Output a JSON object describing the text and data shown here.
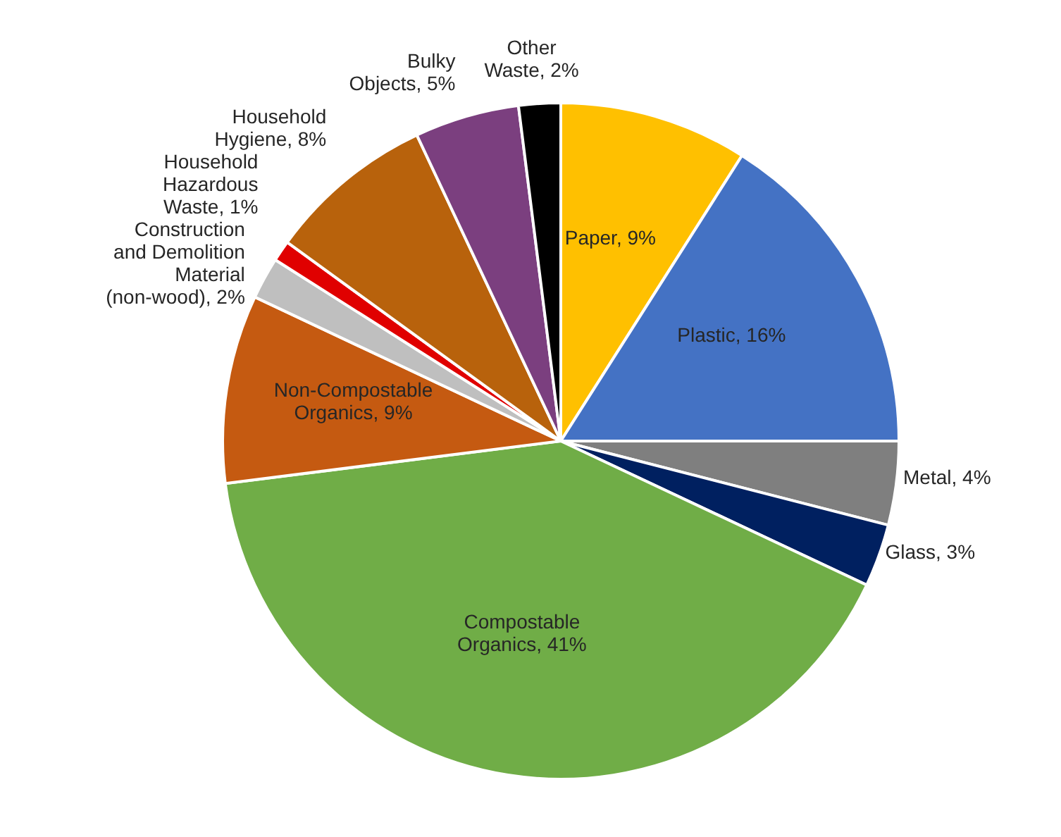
{
  "chart_data": {
    "type": "pie",
    "categories": [
      "Paper",
      "Plastic",
      "Metal",
      "Glass",
      "Compostable Organics",
      "Non-Compostable Organics",
      "Construction and Demolition Material (non-wood)",
      "Household Hazardous Waste",
      "Household Hygiene",
      "Bulky Objects",
      "Other Waste"
    ],
    "values": [
      9,
      16,
      4,
      3,
      41,
      9,
      2,
      1,
      8,
      5,
      2
    ],
    "value_labels": [
      "9%",
      "16%",
      "4%",
      "3%",
      "41%",
      "9%",
      "2%",
      "1%",
      "8%",
      "5%",
      "2%"
    ],
    "colors": [
      "#ffc000",
      "#4472c4",
      "#7f7f7f",
      "#002060",
      "#70ad47",
      "#c55a11",
      "#bfbfbf",
      "#e00000",
      "#b8620c",
      "#7b3f7f",
      "#000000"
    ],
    "data_labels": true
  }
}
